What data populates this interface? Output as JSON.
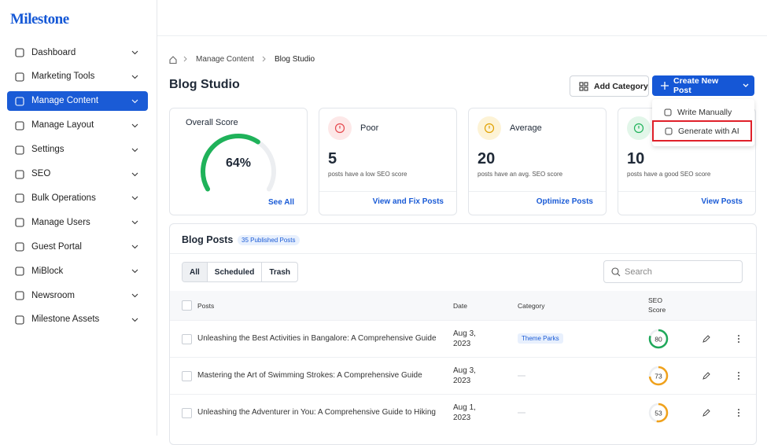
{
  "brand": "Milestone",
  "nav": {
    "items": [
      "Dashboard",
      "Marketing Tools",
      "Manage Content",
      "Manage Layout",
      "Settings",
      "SEO",
      "Bulk Operations",
      "Manage Users",
      "Guest Portal",
      "MiBlock",
      "Newsroom",
      "Milestone Assets"
    ],
    "active": 2
  },
  "breadcrumb": [
    "Manage Content",
    "Blog Studio"
  ],
  "page_title": "Blog Studio",
  "buttons": {
    "add_category": "Add Category",
    "create_new_post": "Create New Post"
  },
  "create_menu": {
    "items": [
      "Write Manually",
      "Generate with AI"
    ],
    "highlighted": 1
  },
  "overall_score": {
    "label": "Overall Score",
    "value": 64,
    "value_label": "64%",
    "link": "See All",
    "color": "#1fb25a"
  },
  "score_cards": [
    {
      "label": "Poor",
      "count": 5,
      "description": "posts have a low SEO score",
      "link": "View and Fix Posts",
      "color": "#e5484d",
      "bg": "#fde8e8"
    },
    {
      "label": "Average",
      "count": 20,
      "description": "posts have an avg. SEO score",
      "link": "Optimize Posts",
      "color": "#e0a100",
      "bg": "#fdf3d6"
    },
    {
      "count": 10,
      "description": "posts have a good SEO score",
      "link": "View Posts",
      "color": "#1fb25a",
      "bg": "#e2f6e9"
    }
  ],
  "blog_posts": {
    "title": "Blog Posts",
    "badge": "35 Published Posts",
    "tabs": [
      "All",
      "Scheduled",
      "Trash"
    ],
    "active_tab": 0,
    "search_placeholder": "Search",
    "columns": [
      "Posts",
      "Date",
      "Category",
      "SEO Score"
    ],
    "rows": [
      {
        "title": "Unleashing the Best Activities in Bangalore: A Comprehensive Guide",
        "date": "Aug 3, 2023",
        "category": "Theme Parks",
        "seo_score": 80,
        "score_color": "#1fa85a"
      },
      {
        "title": "Mastering the Art of Swimming Strokes: A Comprehensive Guide",
        "date": "Aug 3, 2023",
        "category": null,
        "seo_score": 73,
        "score_color": "#f0a11a"
      },
      {
        "title": "Unleashing the Adventurer in You: A Comprehensive Guide to Hiking",
        "date": "Aug 1, 2023",
        "category": null,
        "seo_score": 53,
        "score_color": "#f0a11a"
      }
    ]
  }
}
